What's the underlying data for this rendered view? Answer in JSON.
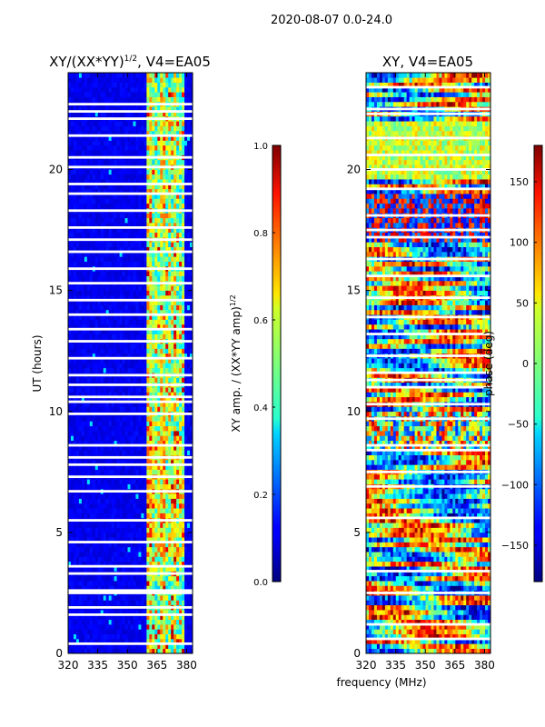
{
  "figure_title": "2020-08-07 0.0-24.0",
  "shared_xlabel": "frequency (MHz)",
  "chart_data": [
    {
      "type": "heatmap",
      "title_main": "XY/(XX*YY)",
      "title_sup": "1/2",
      "title_rest": ", V4=EA05",
      "xlabel": "",
      "ylabel": "UT (hours)",
      "xlim": [
        320,
        383
      ],
      "ylim": [
        0,
        24
      ],
      "xticks": [
        320,
        335,
        350,
        365,
        380
      ],
      "yticks": [
        0,
        5,
        10,
        15,
        20
      ],
      "colorbar": {
        "label_main": "XY amp. / (XX*YY amp)",
        "label_sup": "1/2",
        "range": [
          0.0,
          1.0
        ],
        "ticks": [
          "0.0",
          "0.2",
          "0.4",
          "0.6",
          "0.8",
          "1.0"
        ],
        "tick_values": [
          0.0,
          0.2,
          0.4,
          0.6,
          0.8,
          1.0
        ]
      },
      "active_band_mhz": [
        360,
        379
      ],
      "flagged_ut_rows": [
        0.4,
        1.6,
        1.9,
        2.5,
        2.6,
        3.3,
        3.6,
        4.6,
        5.5,
        6.7,
        7.3,
        7.8,
        8.1,
        8.6,
        9.9,
        10.4,
        10.6,
        11.1,
        11.5,
        12.2,
        12.9,
        13.4,
        14.0,
        14.6,
        15.3,
        15.9,
        16.6,
        17.1,
        17.6,
        18.3,
        19.0,
        19.4,
        20.1,
        20.5,
        21.4,
        22.1,
        22.4,
        22.7
      ]
    },
    {
      "type": "heatmap",
      "title": "XY, V4=EA05",
      "xlabel": "frequency (MHz)",
      "ylabel": "",
      "xlim": [
        320,
        383
      ],
      "ylim": [
        0,
        24
      ],
      "xticks": [
        320,
        335,
        350,
        365,
        380
      ],
      "yticks": [
        0,
        5,
        10,
        15,
        20
      ],
      "colorbar": {
        "label": "phase (deg)",
        "range": [
          -180,
          180
        ],
        "ticks": [
          "150",
          "100",
          "50",
          "0",
          "−50",
          "−100",
          "−150"
        ],
        "tick_values": [
          150,
          100,
          50,
          0,
          -50,
          -100,
          -150
        ]
      },
      "flagged_ut_rows": [
        0.6,
        1.2,
        2.5,
        3.4,
        5.6,
        6.9,
        7.5,
        8.4,
        8.6,
        9.7,
        10.3,
        11.0,
        11.3,
        11.6,
        12.3,
        13.2,
        13.9,
        14.7,
        15.6,
        16.3,
        17.2,
        17.5,
        18.1,
        19.2,
        20.0,
        20.6,
        21.3,
        22.3,
        22.5,
        23.4
      ]
    }
  ]
}
